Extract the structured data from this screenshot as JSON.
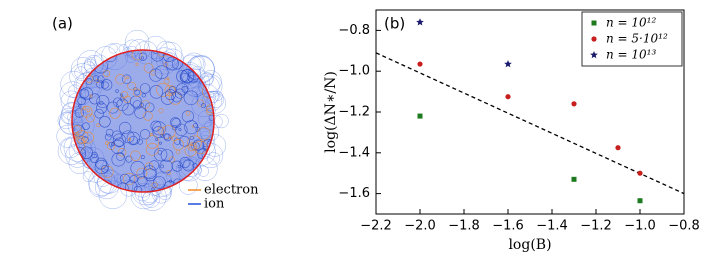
{
  "panel_a": {
    "label": "(a)",
    "legend": [
      {
        "name": "electron",
        "color": "#f08a24"
      },
      {
        "name": "ion",
        "color": "#2250d8"
      }
    ]
  },
  "chart_data": {
    "type": "scatter",
    "panel_label": "(b)",
    "xlabel": "log(B)",
    "ylabel": "log(ΔN∗/N)",
    "xlim": [
      -2.2,
      -0.8
    ],
    "ylim": [
      -1.7,
      -0.7
    ],
    "xticks": [
      {
        "value": -2.2,
        "label": "−2.2"
      },
      {
        "value": -2.0,
        "label": "−2.0"
      },
      {
        "value": -1.8,
        "label": "−1.8"
      },
      {
        "value": -1.6,
        "label": "−1.6"
      },
      {
        "value": -1.4,
        "label": "−1.4"
      },
      {
        "value": -1.2,
        "label": "−1.2"
      },
      {
        "value": -1.0,
        "label": "−1.0"
      },
      {
        "value": -0.8,
        "label": "−0.8"
      }
    ],
    "yticks": [
      {
        "value": -1.6,
        "label": "−1.6"
      },
      {
        "value": -1.4,
        "label": "−1.4"
      },
      {
        "value": -1.2,
        "label": "−1.2"
      },
      {
        "value": -1.0,
        "label": "−1.0"
      },
      {
        "value": -0.8,
        "label": "−0.8"
      }
    ],
    "legend_position": "upper right",
    "series": [
      {
        "name": "n = 10¹²",
        "color": "#1e7a1e",
        "marker": "square",
        "x": [
          -2.0,
          -1.3,
          -1.0
        ],
        "values": [
          -1.22,
          -1.53,
          -1.635
        ]
      },
      {
        "name": "n = 5·10¹²",
        "color": "#c81e1e",
        "marker": "circle",
        "x": [
          -2.0,
          -1.6,
          -1.3,
          -1.1,
          -1.0
        ],
        "values": [
          -0.965,
          -1.125,
          -1.16,
          -1.375,
          -1.5
        ]
      },
      {
        "name": "n = 10¹³",
        "color": "#1a1a6e",
        "marker": "star",
        "x": [
          -2.0,
          -1.6
        ],
        "values": [
          -0.76,
          -0.965
        ]
      }
    ],
    "lines": [
      {
        "color": "#000000",
        "style": "dashed",
        "x": [
          -2.2,
          -0.8
        ],
        "values": [
          -0.91,
          -1.6
        ]
      }
    ]
  }
}
